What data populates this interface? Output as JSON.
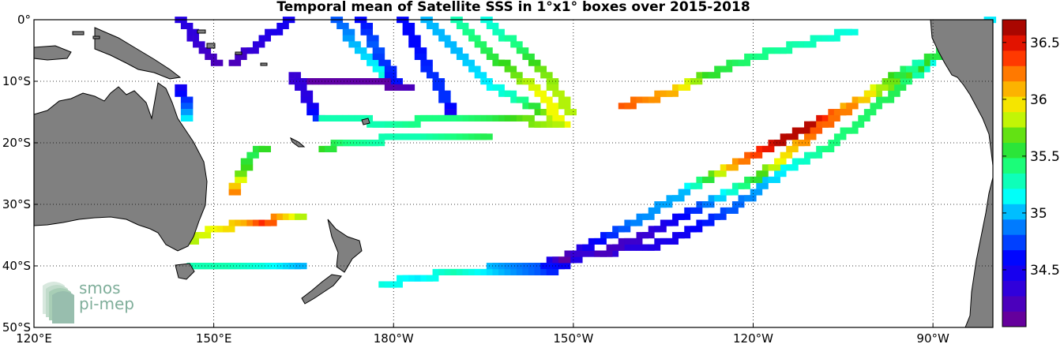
{
  "title": "Temporal mean of Satellite SSS in 1°x1° boxes over 2015-2018",
  "logo": {
    "line1": "smos",
    "line2": "pi-mep"
  },
  "map": {
    "lon_range": [
      120,
      280
    ],
    "lat_range": [
      -50,
      0
    ],
    "xticks": [
      {
        "lon": 120,
        "label": "120°E"
      },
      {
        "lon": 150,
        "label": "150°E"
      },
      {
        "lon": 180,
        "label": "180°W"
      },
      {
        "lon": 210,
        "label": "150°W"
      },
      {
        "lon": 240,
        "label": "120°W"
      },
      {
        "lon": 270,
        "label": "90°W"
      }
    ],
    "yticks": [
      {
        "lat": 0,
        "label": "0°"
      },
      {
        "lat": -10,
        "label": "10°S"
      },
      {
        "lat": -20,
        "label": "20°S"
      },
      {
        "lat": -30,
        "label": "30°S"
      },
      {
        "lat": -40,
        "label": "40°S"
      },
      {
        "lat": -50,
        "label": "50°S"
      }
    ],
    "grid": "dotted",
    "land_color": "#808080"
  },
  "colorbar": {
    "range": [
      34.0,
      36.7
    ],
    "ticks": [
      {
        "value": 34.5,
        "label": "34.5"
      },
      {
        "value": 35.0,
        "label": "35"
      },
      {
        "value": 35.5,
        "label": "35.5"
      },
      {
        "value": 36.0,
        "label": "36"
      },
      {
        "value": 36.5,
        "label": "36.5"
      }
    ],
    "colormap": "jet"
  },
  "chart_data": {
    "type": "heatmap",
    "title": "Temporal mean of Satellite SSS in 1°x1° boxes over 2015-2018",
    "variable": "SSS",
    "value_range": [
      34.0,
      36.7
    ],
    "tracks": [
      {
        "name": "t1",
        "pts": [
          [
            144,
            -0.5,
            34.4
          ],
          [
            147,
            -4,
            34.3
          ],
          [
            150,
            -7,
            34.2
          ]
        ]
      },
      {
        "name": "t2",
        "pts": [
          [
            153,
            -7,
            34.2
          ],
          [
            158,
            -3,
            34.4
          ],
          [
            162,
            -0.5,
            34.5
          ]
        ]
      },
      {
        "name": "t3",
        "pts": [
          [
            170,
            -0.5,
            34.8
          ],
          [
            173,
            -4,
            35.0
          ],
          [
            176,
            -7,
            35.1
          ],
          [
            180,
            -11,
            35.3
          ]
        ]
      },
      {
        "name": "t4",
        "pts": [
          [
            174,
            -0.5,
            34.6
          ],
          [
            176,
            -4,
            34.8
          ],
          [
            178,
            -7,
            34.7
          ],
          [
            180,
            -11,
            34.6
          ]
        ]
      },
      {
        "name": "t5",
        "pts": [
          [
            181,
            -0.5,
            34.6
          ],
          [
            183,
            -4,
            34.6
          ],
          [
            186,
            -9,
            34.7
          ],
          [
            188,
            -13,
            34.7
          ],
          [
            189,
            -15,
            34.5
          ]
        ]
      },
      {
        "name": "t6",
        "pts": [
          [
            185,
            -0.5,
            35.0
          ],
          [
            190,
            -5,
            35.0
          ],
          [
            195,
            -10,
            35.1
          ],
          [
            200,
            -13,
            35.3
          ],
          [
            206,
            -16,
            35.8
          ]
        ]
      },
      {
        "name": "t7",
        "pts": [
          [
            190,
            -0.5,
            35.3
          ],
          [
            195,
            -5,
            35.5
          ],
          [
            200,
            -9,
            35.7
          ],
          [
            204,
            -12,
            35.9
          ],
          [
            208,
            -17,
            35.9
          ]
        ]
      },
      {
        "name": "t8",
        "pts": [
          [
            195,
            -0.5,
            35.2
          ],
          [
            200,
            -4,
            35.4
          ],
          [
            204,
            -8,
            35.7
          ],
          [
            207,
            -12,
            35.8
          ],
          [
            209,
            -15,
            35.8
          ]
        ]
      },
      {
        "name": "t9",
        "pts": [
          [
            163,
            -10,
            34.3
          ],
          [
            166,
            -10,
            34.1
          ],
          [
            172,
            -10,
            34.1
          ],
          [
            178,
            -10.5,
            34.1
          ],
          [
            182,
            -11,
            34.2
          ]
        ]
      },
      {
        "name": "t10",
        "pts": [
          [
            163,
            -9,
            34.3
          ],
          [
            165,
            -13,
            34.4
          ],
          [
            167,
            -16,
            34.7
          ]
        ]
      },
      {
        "name": "t11",
        "pts": [
          [
            144,
            -11,
            34.5
          ],
          [
            145,
            -14,
            34.8
          ],
          [
            145,
            -16,
            35.1
          ]
        ]
      },
      {
        "name": "t12",
        "pts": [
          [
            168,
            -16,
            35.3
          ],
          [
            172,
            -16,
            35.3
          ],
          [
            178,
            -17,
            35.3
          ],
          [
            184,
            -16.5,
            35.4
          ],
          [
            190,
            -16.5,
            35.4
          ],
          [
            196,
            -16,
            35.5
          ],
          [
            202,
            -16.5,
            35.7
          ],
          [
            207,
            -17,
            35.8
          ]
        ]
      },
      {
        "name": "t13",
        "pts": [
          [
            168,
            -21,
            35.6
          ],
          [
            172,
            -20,
            35.4
          ],
          [
            178,
            -19.5,
            35.3
          ],
          [
            184,
            -19.5,
            35.3
          ],
          [
            190,
            -19,
            35.4
          ],
          [
            195,
            -19,
            35.5
          ]
        ]
      },
      {
        "name": "t14",
        "pts": [
          [
            153,
            -28,
            36.2
          ],
          [
            154,
            -25,
            35.7
          ],
          [
            156,
            -22,
            35.5
          ],
          [
            158,
            -21,
            35.6
          ]
        ]
      },
      {
        "name": "t15",
        "pts": [
          [
            146,
            -36,
            35.8
          ],
          [
            150,
            -34,
            35.9
          ],
          [
            155,
            -33,
            36.1
          ],
          [
            158,
            -33,
            36.4
          ],
          [
            162,
            -32,
            36.0
          ],
          [
            164,
            -32.5,
            35.8
          ]
        ]
      },
      {
        "name": "t16",
        "pts": [
          [
            146,
            -40,
            35.3
          ],
          [
            152,
            -40,
            35.3
          ],
          [
            158,
            -40,
            35.2
          ],
          [
            164,
            -40,
            35.0
          ]
        ]
      },
      {
        "name": "t17",
        "pts": [
          [
            178,
            -43,
            35.2
          ],
          [
            184,
            -42,
            35.1
          ],
          [
            190,
            -41,
            35.3
          ],
          [
            198,
            -41.5,
            35.0
          ],
          [
            204,
            -41.5,
            34.8
          ],
          [
            212,
            -38,
            34.3
          ],
          [
            222,
            -37,
            34.4
          ],
          [
            228,
            -35,
            34.5
          ],
          [
            236,
            -31,
            34.8
          ],
          [
            244,
            -25,
            35.1
          ],
          [
            252,
            -21,
            35.4
          ],
          [
            264,
            -11,
            35.5
          ],
          [
            272,
            -5,
            35.0
          ],
          [
            278,
            -1,
            34.9
          ]
        ]
      },
      {
        "name": "t18",
        "pts": [
          [
            196,
            -40,
            35.0
          ],
          [
            204,
            -40,
            34.8
          ],
          [
            208,
            -39,
            34.1
          ],
          [
            212,
            -37,
            34.5
          ],
          [
            220,
            -33,
            34.9
          ],
          [
            228,
            -28,
            35.0
          ],
          [
            236,
            -24,
            36.1
          ],
          [
            244,
            -20,
            36.6
          ],
          [
            250,
            -17,
            36.6
          ],
          [
            258,
            -13,
            35.8
          ],
          [
            268,
            -7,
            35.6
          ],
          [
            274,
            -3,
            35.4
          ],
          [
            279,
            -0.5,
            35.1
          ]
        ]
      },
      {
        "name": "t19",
        "pts": [
          [
            214,
            -38,
            34.2
          ],
          [
            222,
            -35,
            34.3
          ],
          [
            230,
            -31,
            34.7
          ],
          [
            238,
            -27,
            35.4
          ],
          [
            244,
            -23,
            35.9
          ],
          [
            250,
            -18,
            36.3
          ],
          [
            256,
            -14,
            36.2
          ],
          [
            262,
            -10,
            35.7
          ],
          [
            267,
            -7,
            35.3
          ]
        ]
      },
      {
        "name": "t20",
        "pts": [
          [
            218,
            -14,
            36.3
          ],
          [
            226,
            -12,
            36.1
          ],
          [
            232,
            -9,
            35.6
          ],
          [
            240,
            -6,
            35.4
          ],
          [
            248,
            -4,
            35.3
          ],
          [
            256,
            -2,
            35.2
          ]
        ]
      }
    ]
  }
}
